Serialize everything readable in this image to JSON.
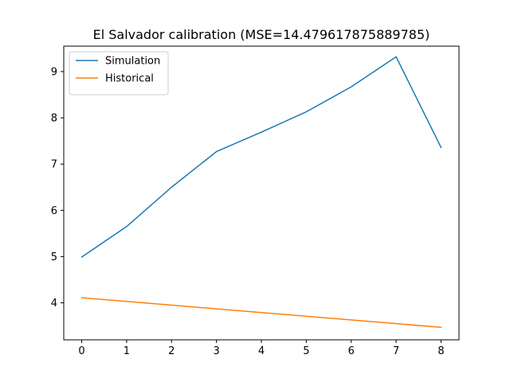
{
  "chart_data": {
    "type": "line",
    "title": "El Salvador calibration (MSE=14.479617875889785)",
    "xlabel": "",
    "ylabel": "",
    "x": [
      0,
      1,
      2,
      3,
      4,
      5,
      6,
      7,
      8
    ],
    "xlim": [
      -0.4,
      8.4
    ],
    "ylim": [
      3.2,
      9.55
    ],
    "xticks": [
      0,
      1,
      2,
      3,
      4,
      5,
      6,
      7,
      8
    ],
    "yticks": [
      4,
      5,
      6,
      7,
      8,
      9
    ],
    "legend_position": "upper left",
    "grid": false,
    "series": [
      {
        "name": "Simulation",
        "color": "#1f77b4",
        "values": [
          4.99,
          5.65,
          6.5,
          7.27,
          7.69,
          8.13,
          8.67,
          9.32,
          7.36
        ]
      },
      {
        "name": "Historical",
        "color": "#ff7f0e",
        "values": [
          4.11,
          4.03,
          3.95,
          3.87,
          3.79,
          3.71,
          3.63,
          3.55,
          3.47
        ]
      }
    ]
  }
}
